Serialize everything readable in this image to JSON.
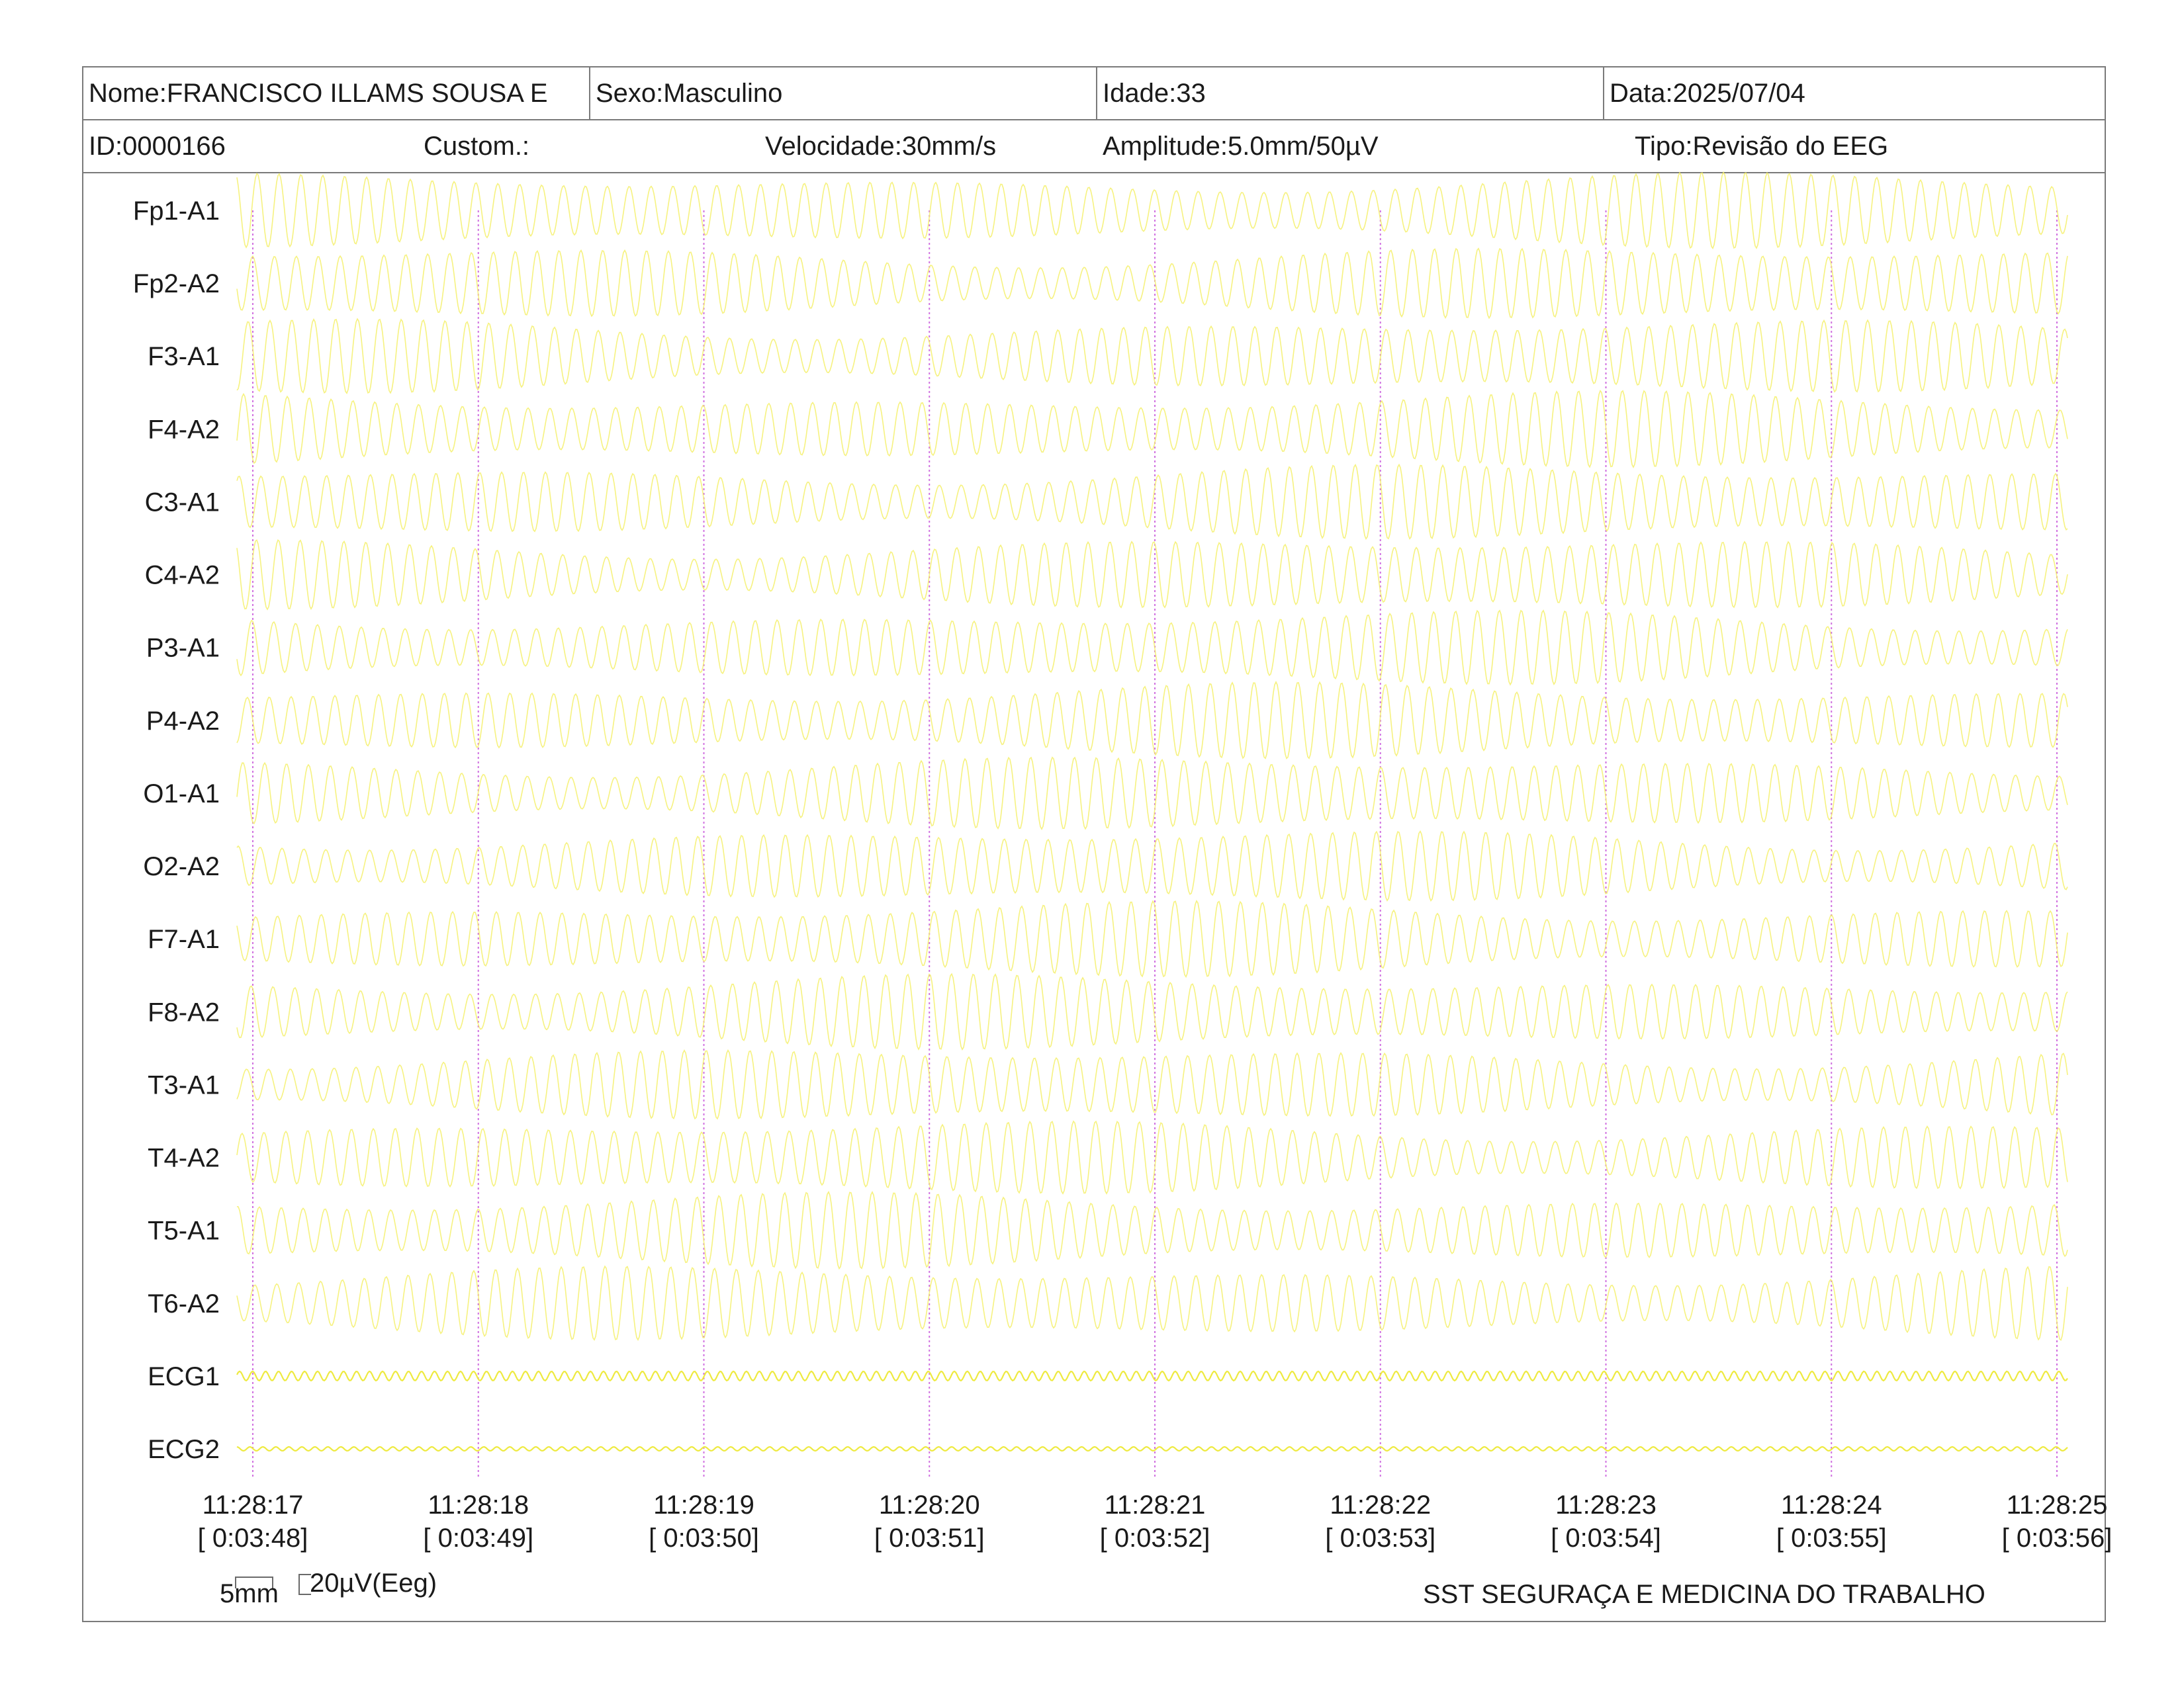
{
  "header": {
    "nome": "Nome:FRANCISCO ILLAMS SOUSA E",
    "sexo": "Sexo:Masculino",
    "idade": "Idade:33",
    "data": "Data:2025/07/04",
    "id": "ID:0000166",
    "custom": "Custom.:",
    "velocidade": "Velocidade:30mm/s",
    "amplitude": "Amplitude:5.0mm/50µV",
    "tipo": "Tipo:Revisão do EEG"
  },
  "channels": [
    "Fp1-A1",
    "Fp2-A2",
    "F3-A1",
    "F4-A2",
    "C3-A1",
    "C4-A2",
    "P3-A1",
    "P4-A2",
    "O1-A1",
    "O2-A2",
    "F7-A1",
    "F8-A2",
    "T3-A1",
    "T4-A2",
    "T5-A1",
    "T6-A2",
    "ECG1",
    "ECG2"
  ],
  "time_ticks": [
    {
      "clock": "11:28:17",
      "elapsed": "[ 0:03:48]"
    },
    {
      "clock": "11:28:18",
      "elapsed": "[ 0:03:49]"
    },
    {
      "clock": "11:28:19",
      "elapsed": "[ 0:03:50]"
    },
    {
      "clock": "11:28:20",
      "elapsed": "[ 0:03:51]"
    },
    {
      "clock": "11:28:21",
      "elapsed": "[ 0:03:52]"
    },
    {
      "clock": "11:28:22",
      "elapsed": "[ 0:03:53]"
    },
    {
      "clock": "11:28:23",
      "elapsed": "[ 0:03:54]"
    },
    {
      "clock": "11:28:24",
      "elapsed": "[ 0:03:55]"
    },
    {
      "clock": "11:28:25",
      "elapsed": "[ 0:03:56]"
    }
  ],
  "scale": {
    "time_label": "5mm",
    "amp_label": "20µV(Eeg)"
  },
  "footer": {
    "company": "SST SEGURAÇA E MEDICINA DO TRABALHO"
  },
  "colors": {
    "trace": "#f4f06a",
    "ecg_trace": "#eeea40",
    "marker": "#d070e0",
    "border": "#7a7a7a"
  }
}
